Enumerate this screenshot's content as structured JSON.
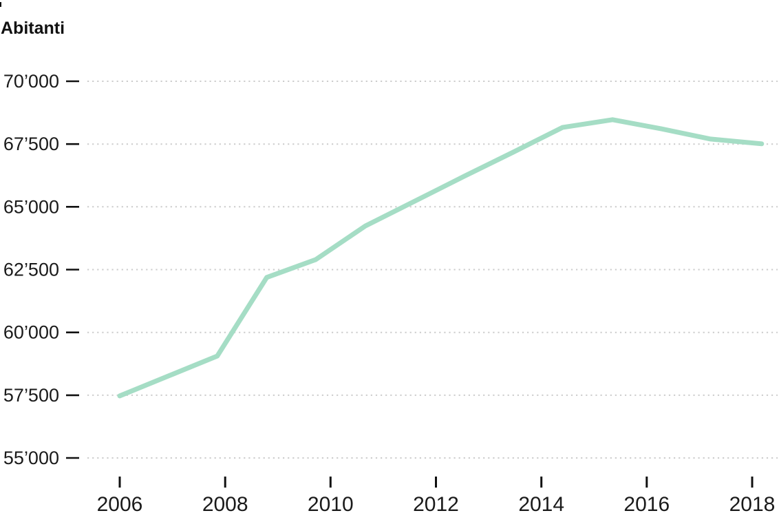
{
  "chart_data": {
    "type": "line",
    "title": "Abitanti",
    "x_axis": {
      "tick_labels": [
        "2006",
        "2008",
        "2010",
        "2012",
        "2014",
        "2016",
        "2018"
      ],
      "tick_years": [
        2006,
        2008,
        2010,
        2012,
        2014,
        2016,
        2018
      ],
      "range_years": [
        2006,
        2018.2
      ]
    },
    "y_axis": {
      "tick_labels": [
        "70’000",
        "67’500",
        "65’000",
        "62’500",
        "60’000",
        "57’500",
        "55’000"
      ],
      "tick_values": [
        70000,
        67500,
        65000,
        62500,
        60000,
        57500,
        55000
      ],
      "range": [
        55000,
        70000
      ]
    },
    "grid": {
      "horizontal": true,
      "style": "dotted",
      "vertical": false
    },
    "legend": "none",
    "colors": {
      "line": "#a5ddc5",
      "grid": "#cccccc",
      "text": "#111111",
      "background": "#ffffff"
    },
    "series": [
      {
        "name": "Abitanti",
        "points": [
          {
            "year": 2006.0,
            "value": 57470
          },
          {
            "year": 2006.93,
            "value": 58270
          },
          {
            "year": 2007.85,
            "value": 59060
          },
          {
            "year": 2008.79,
            "value": 62190
          },
          {
            "year": 2009.72,
            "value": 62900
          },
          {
            "year": 2010.66,
            "value": 64240
          },
          {
            "year": 2011.6,
            "value": 65230
          },
          {
            "year": 2012.54,
            "value": 66220
          },
          {
            "year": 2013.47,
            "value": 67180
          },
          {
            "year": 2014.4,
            "value": 68160
          },
          {
            "year": 2015.35,
            "value": 68470
          },
          {
            "year": 2016.27,
            "value": 68110
          },
          {
            "year": 2017.21,
            "value": 67700
          },
          {
            "year": 2018.18,
            "value": 67510
          }
        ]
      }
    ]
  }
}
